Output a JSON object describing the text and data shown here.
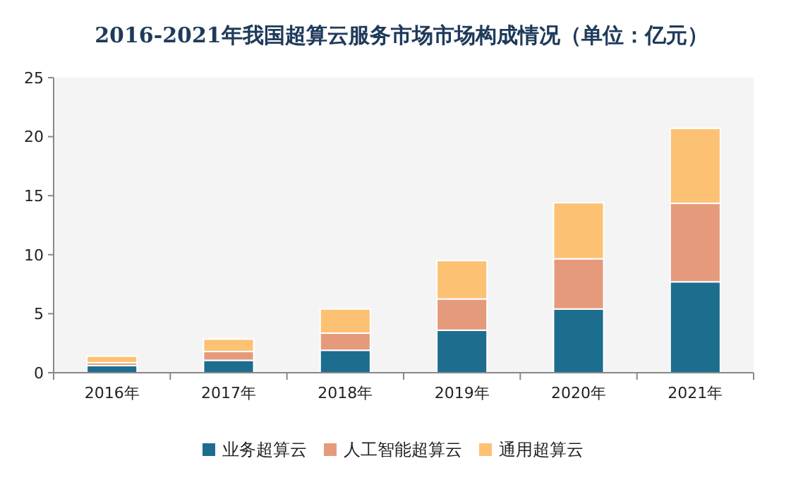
{
  "chart_data": {
    "type": "bar",
    "title": "2016-2021年我国超算云服务市场市场构成情况（单位：亿元）",
    "categories": [
      "2016年",
      "2017年",
      "2018年",
      "2019年",
      "2020年",
      "2021年"
    ],
    "stacked": true,
    "ylim": [
      0,
      25
    ],
    "yticks": [
      0,
      5,
      10,
      15,
      20,
      25
    ],
    "legend": "bottom",
    "series": [
      {
        "name": "业务超算云",
        "color": "#1d6d8f",
        "values": [
          0.6,
          1.05,
          1.9,
          3.6,
          5.4,
          7.7
        ]
      },
      {
        "name": "人工智能超算云",
        "color": "#e59b7b",
        "values": [
          0.25,
          0.75,
          1.45,
          2.65,
          4.25,
          6.65
        ]
      },
      {
        "name": "通用超算云",
        "color": "#fdc174",
        "values": [
          0.55,
          1.05,
          2.05,
          3.25,
          4.75,
          6.35
        ]
      }
    ]
  }
}
